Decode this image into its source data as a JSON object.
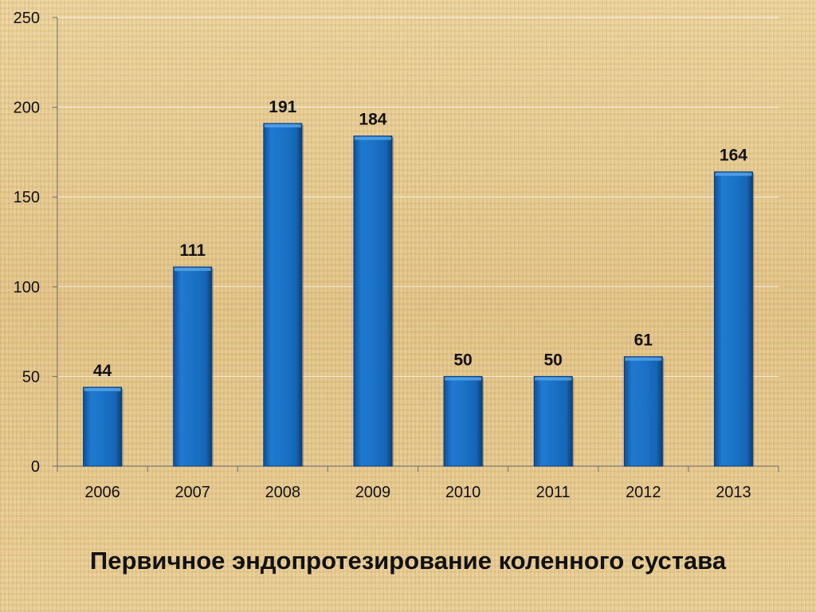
{
  "chart_data": {
    "type": "bar",
    "categories": [
      "2006",
      "2007",
      "2008",
      "2009",
      "2010",
      "2011",
      "2012",
      "2013"
    ],
    "values": [
      44,
      111,
      191,
      184,
      50,
      50,
      61,
      164
    ],
    "data_labels": [
      "44",
      "111",
      "191",
      "184",
      "50",
      "50",
      "61",
      "164"
    ],
    "title": "Первичное эндопротезирование коленного сустава",
    "xlabel": "",
    "ylabel": "",
    "ylim": [
      0,
      250
    ],
    "yticks": [
      "0",
      "50",
      "100",
      "150",
      "200",
      "250"
    ],
    "grid": true,
    "legend": "none",
    "colors": {
      "bar": "#1a73c8",
      "bar_edge": "#0b3d78",
      "grid": "#ffffff"
    }
  }
}
